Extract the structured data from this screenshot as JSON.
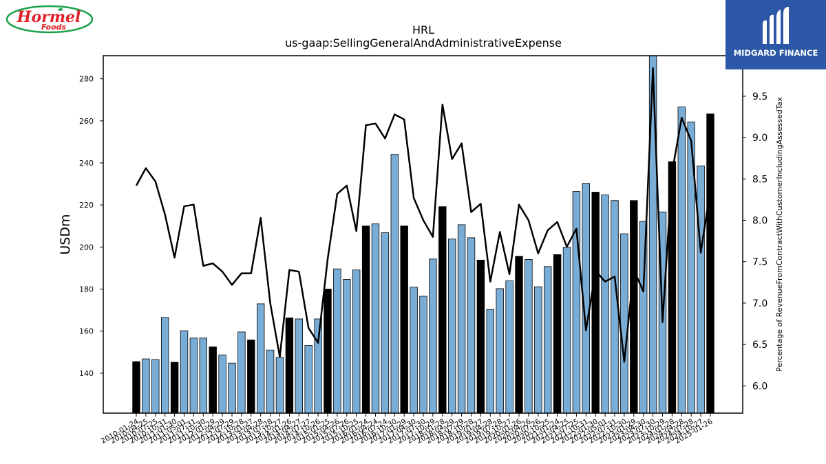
{
  "logos": {
    "left_text": "Hormel",
    "left_sub": "Foods",
    "right_text": "MIDGARD FINANCE",
    "colors": {
      "hormel_red": "#e01f26",
      "hormel_green": "#1aa24a",
      "midgard_blue": "#2b57a6"
    }
  },
  "chart_data": {
    "type": "bar",
    "title": "HRL",
    "subtitle": "us-gaap:SellingGeneralAndAdministrativeExpense",
    "ylabel": "USDm",
    "y2label": "Percentage of RevenueFromContractWithCustomerIncludingAssessedTax",
    "ylim": [
      121,
      291
    ],
    "y2lim": [
      5.67,
      9.99
    ],
    "yticks": [
      "140",
      "160",
      "180",
      "200",
      "220",
      "240",
      "260",
      "280"
    ],
    "y2ticks": [
      "6.0",
      "6.5",
      "7.0",
      "7.5",
      "8.0",
      "8.5",
      "9.0",
      "9.5"
    ],
    "colors": {
      "annual_bar": "#000000",
      "quarter_bar": "#7aadd6",
      "line": "#000000"
    },
    "categories": [
      "2010-01-24",
      "2010-04-25",
      "2010-07-25",
      "2010-10-31",
      "2011-01-30",
      "2011-05-01",
      "2011-07-31",
      "2011-10-30",
      "2012-01-29",
      "2012-04-29",
      "2012-07-29",
      "2012-10-28",
      "2013-01-27",
      "2013-04-28",
      "2013-07-28",
      "2013-10-27",
      "2014-01-26",
      "2014-04-27",
      "2014-07-27",
      "2014-10-26",
      "2015-01-25",
      "2015-04-26",
      "2015-07-26",
      "2015-10-25",
      "2016-01-24",
      "2016-04-24",
      "2016-07-24",
      "2016-10-30",
      "2017-01-29",
      "2017-04-30",
      "2017-07-30",
      "2017-10-29",
      "2018-01-28",
      "2018-04-29",
      "2018-07-29",
      "2018-10-28",
      "2019-01-27",
      "2019-04-28",
      "2019-07-28",
      "2019-10-27",
      "2020-01-26",
      "2020-04-26",
      "2020-07-26",
      "2020-10-25",
      "2021-01-24",
      "2021-04-25",
      "2021-07-25",
      "2021-10-31",
      "2022-01-30",
      "2022-05-01",
      "2022-07-31",
      "2022-10-30",
      "2023-01-29",
      "2023-04-30",
      "2023-07-30",
      "2023-10-29",
      "2024-01-28",
      "2024-04-28",
      "2024-07-28",
      "2024-10-27",
      "2025-01-26"
    ],
    "values": [
      145.5,
      146.8,
      146.5,
      166.5,
      145.2,
      160.2,
      156.7,
      156.7,
      152.5,
      148.7,
      144.8,
      159.6,
      155.8,
      173.0,
      151.0,
      147.5,
      166.3,
      165.8,
      153.2,
      165.8,
      180.0,
      189.6,
      184.6,
      189.1,
      210.0,
      211.0,
      206.8,
      244.0,
      210.0,
      180.9,
      176.6,
      194.3,
      219.2,
      203.8,
      210.6,
      204.4,
      193.8,
      170.3,
      180.2,
      183.9,
      195.6,
      194.1,
      181.1,
      190.7,
      196.4,
      199.9,
      226.4,
      230.3,
      226.1,
      224.8,
      222.1,
      206.3,
      222.1,
      212.2,
      296.0,
      216.7,
      240.6,
      266.6,
      259.5,
      238.6,
      263.3
    ],
    "annual_flags": [
      1,
      0,
      0,
      0,
      1,
      0,
      0,
      0,
      1,
      0,
      0,
      0,
      1,
      0,
      0,
      0,
      1,
      0,
      0,
      0,
      1,
      0,
      0,
      0,
      1,
      0,
      0,
      0,
      1,
      0,
      0,
      0,
      1,
      0,
      0,
      0,
      1,
      0,
      0,
      0,
      1,
      0,
      0,
      0,
      1,
      0,
      0,
      0,
      1,
      0,
      0,
      0,
      1,
      0,
      0,
      0,
      1,
      0,
      0,
      0,
      1
    ],
    "line_values": [
      8.42,
      8.63,
      8.47,
      8.07,
      7.55,
      8.17,
      8.19,
      7.45,
      7.48,
      7.38,
      7.22,
      7.36,
      7.36,
      8.03,
      7.0,
      6.35,
      7.4,
      7.38,
      6.7,
      6.52,
      7.53,
      8.32,
      8.42,
      7.87,
      9.15,
      9.17,
      8.99,
      9.28,
      9.22,
      8.27,
      8.0,
      7.8,
      9.4,
      8.74,
      8.93,
      8.1,
      8.2,
      7.26,
      7.86,
      7.35,
      8.19,
      8.0,
      7.6,
      7.88,
      7.98,
      7.68,
      7.9,
      6.67,
      7.39,
      7.26,
      7.32,
      6.29,
      7.4,
      7.14,
      9.84,
      6.77,
      8.58,
      9.24,
      8.96,
      7.61,
      8.37
    ]
  }
}
